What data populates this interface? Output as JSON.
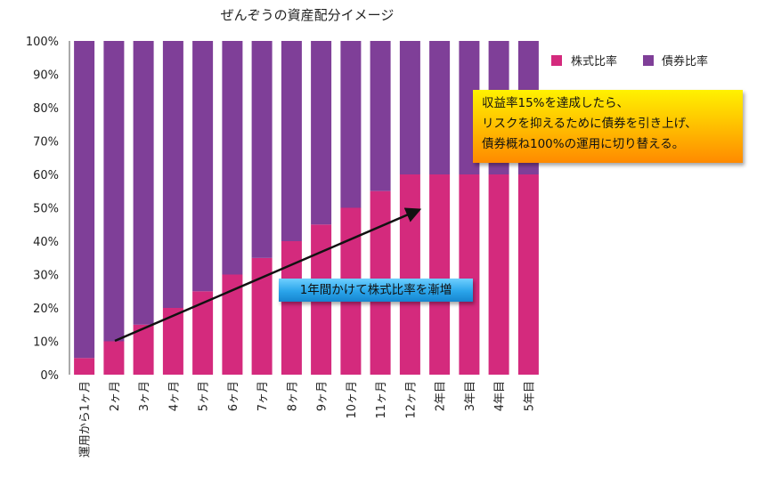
{
  "colors": {
    "stock": "#d42a7d",
    "bond": "#7f3f98"
  },
  "chart_data": {
    "type": "bar",
    "stacked": true,
    "title": "ぜんぞうの資産配分イメージ",
    "categories": [
      "運用から1ヶ月",
      "2ヶ月",
      "3ヶ月",
      "4ヶ月",
      "5ヶ月",
      "6ヶ月",
      "7ヶ月",
      "8ヶ月",
      "9ヶ月",
      "10ヶ月",
      "11ヶ月",
      "12ヶ月",
      "2年目",
      "3年目",
      "4年目",
      "5年目"
    ],
    "series": [
      {
        "name": "株式比率",
        "values": [
          5,
          10,
          15,
          20,
          25,
          30,
          35,
          40,
          45,
          50,
          55,
          60,
          60,
          60,
          60,
          60
        ]
      },
      {
        "name": "債券比率",
        "values": [
          95,
          90,
          85,
          80,
          75,
          70,
          65,
          60,
          55,
          50,
          45,
          40,
          40,
          40,
          40,
          40
        ]
      }
    ],
    "ylim": [
      0,
      100
    ],
    "yticks": [
      "0%",
      "10%",
      "20%",
      "30%",
      "40%",
      "50%",
      "60%",
      "70%",
      "80%",
      "90%",
      "100%"
    ],
    "legend": "top-right",
    "grid": false,
    "annotations": {
      "callout_top": [
        "収益率15%を達成したら、",
        "リスクを抑えるために債券を引き上げ、",
        "債券概ね100%の運用に切り替える。"
      ],
      "callout_arrow": "1年間かけて株式比率を漸増"
    }
  }
}
